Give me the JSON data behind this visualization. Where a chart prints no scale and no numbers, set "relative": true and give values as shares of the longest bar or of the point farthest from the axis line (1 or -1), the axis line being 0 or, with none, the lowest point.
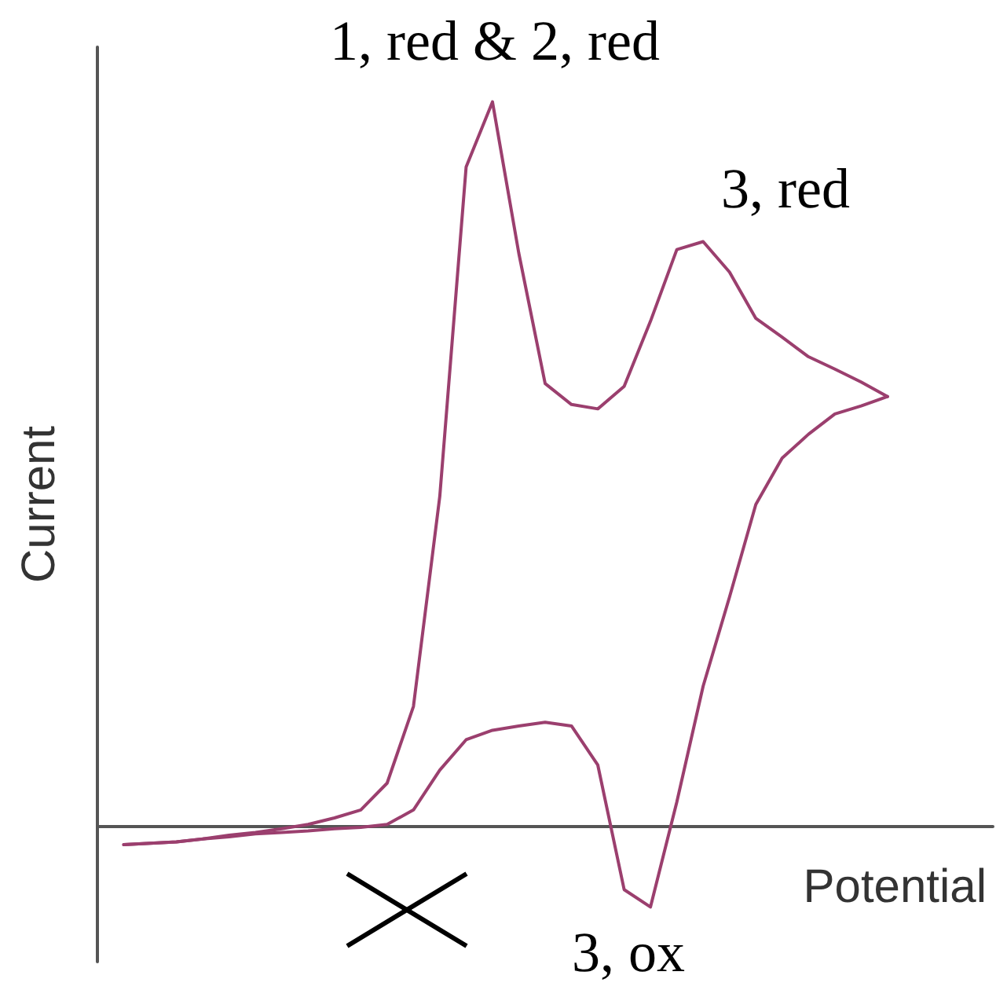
{
  "chart_data": {
    "type": "line",
    "relative": true,
    "xlabel": "Potential",
    "ylabel": "Current",
    "marker": "none",
    "line_style": "solid",
    "categories": [
      null,
      null,
      null,
      null,
      null,
      null,
      null,
      null,
      null,
      null,
      null,
      null,
      null,
      null,
      null,
      null,
      null,
      null,
      null,
      null,
      null,
      null,
      null,
      null,
      null,
      null,
      null,
      null,
      null,
      null,
      null,
      null,
      null,
      null,
      null
    ],
    "series": [
      {
        "color": "#9b3f6e",
        "values": [
          null,
          -0.026,
          -0.024,
          -0.022,
          -0.018,
          -0.015,
          -0.011,
          -0.009,
          -0.007,
          -0.004,
          -0.002,
          0.002,
          0.022,
          0.077,
          0.119,
          0.132,
          0.138,
          0.143,
          0.138,
          0.084,
          -0.088,
          -0.112,
          0.033,
          0.193,
          0.316,
          0.444,
          0.508,
          0.541,
          0.569,
          0.58,
          0.593,
          null,
          null,
          null,
          null
        ]
      },
      {
        "color": "#9b3f6e",
        "values": [
          null,
          -0.026,
          -0.024,
          -0.022,
          -0.018,
          -0.013,
          -0.009,
          -0.004,
          0.002,
          0.011,
          0.022,
          0.059,
          0.165,
          0.455,
          0.91,
          1,
          0.791,
          0.611,
          0.582,
          0.576,
          0.607,
          0.697,
          0.796,
          0.807,
          0.765,
          0.701,
          0.675,
          0.648,
          0.631,
          0.613,
          0.593,
          null,
          null,
          null,
          null
        ]
      }
    ],
    "annotations": [
      "1, red & 2, red",
      "3, red",
      "3, ox"
    ]
  }
}
